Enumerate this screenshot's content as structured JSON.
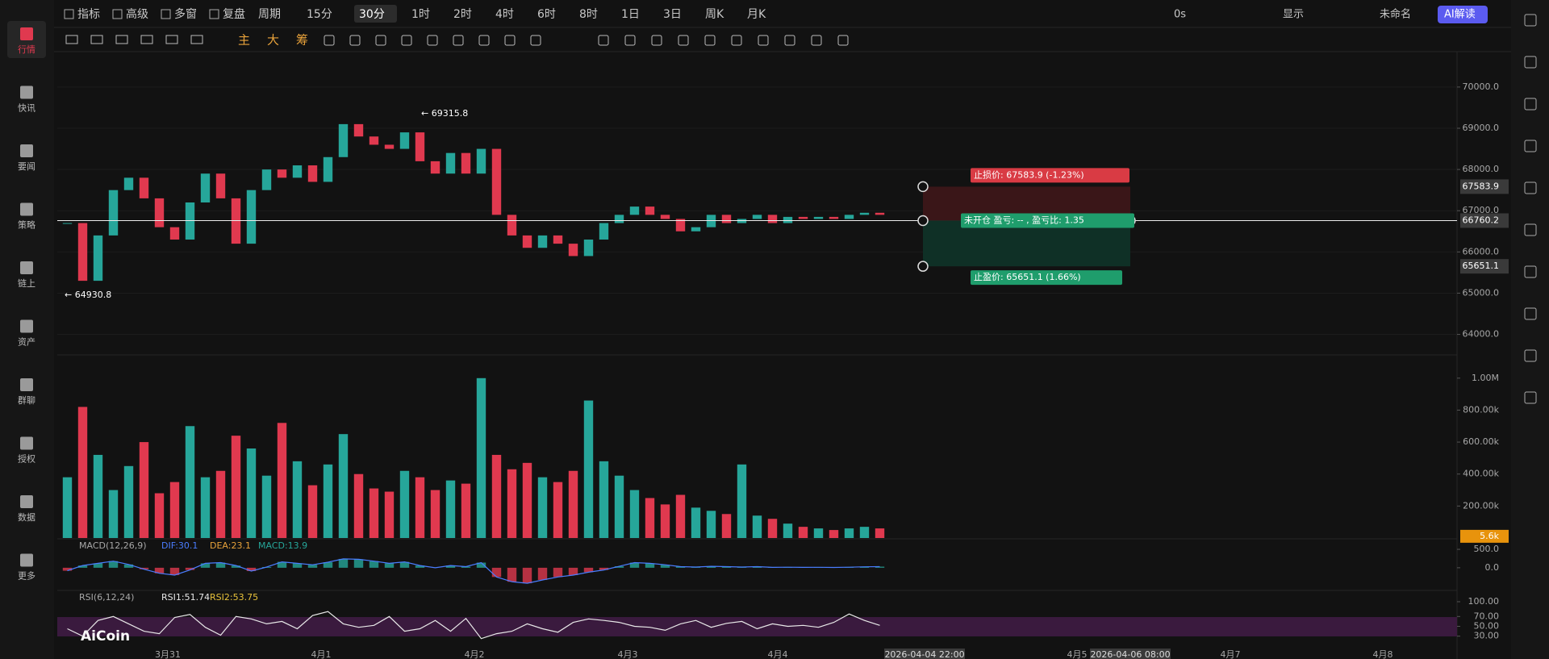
{
  "sidebar": [
    "行情",
    "快讯",
    "要闻",
    "策略",
    "链上",
    "资产",
    "群聊",
    "授权",
    "数据",
    "更多"
  ],
  "toolbar": {
    "items": [
      "指标",
      "高级",
      "多窗",
      "复盘",
      "周期",
      "15分",
      "30分",
      "1时",
      "2时",
      "4时",
      "6时",
      "8时",
      "1日",
      "3日",
      "周K",
      "月K"
    ],
    "active": "30分",
    "right": [
      "0s",
      "显示",
      "未命名",
      "AI解读"
    ]
  },
  "drawing_tools": [
    "主",
    "大",
    "筹"
  ],
  "x_labels": [
    "3月31",
    "4月1",
    "4月2",
    "4月3",
    "4月4",
    "4月5",
    "4月7",
    "4月8"
  ],
  "crosshair_labels": [
    "2026-04-04 22:00",
    "2026-04-06 08:00"
  ],
  "watermark": "AiCoin",
  "chart_data": [
    {
      "type": "candlestick",
      "ylim": [
        63600,
        70800
      ],
      "yticks": [
        {
          "value": 70000,
          "label": "70000.0"
        },
        {
          "value": 69000,
          "label": "69000.0"
        },
        {
          "value": 68000,
          "label": "68000.0"
        },
        {
          "value": 67000,
          "label": "67000.0"
        },
        {
          "value": 66000,
          "label": "66000.0"
        },
        {
          "value": 65000,
          "label": "65000.0"
        },
        {
          "value": 64000,
          "label": "64000.0"
        }
      ],
      "values": [
        66700,
        65300,
        66400,
        67500,
        67800,
        67300,
        66600,
        66300,
        67200,
        67900,
        67300,
        66200,
        67500,
        68000,
        67800,
        68100,
        67700,
        68300,
        69100,
        68800,
        68600,
        68500,
        68900,
        68200,
        67900,
        68400,
        67900,
        68500,
        66900,
        66400,
        66100,
        66400,
        66200,
        65900,
        66300,
        66700,
        66900,
        67100,
        66900,
        66800,
        66500,
        66600,
        66900,
        66700,
        66800,
        66900,
        66700,
        66850,
        66800,
        66850,
        66800,
        66900,
        66950,
        66900
      ],
      "annotations": [
        "← 69315.8",
        "← 64930.8"
      ],
      "price_labels": {
        "stop_loss": {
          "value": 67583.9,
          "label": "67583.9"
        },
        "current": {
          "value": 66760.2,
          "label": "66760.2"
        },
        "take_profit": {
          "value": 65651.1,
          "label": "65651.1"
        }
      },
      "order_texts": {
        "stop_loss": "止损价: 67583.9 (-1.23%)",
        "status": "未开仓  盈亏: -- , 盈亏比: 1.35",
        "take_profit": "止盈价: 65651.1 (1.66%)"
      },
      "colors": {
        "up": "#26a69a",
        "down": "#e0394f"
      }
    },
    {
      "type": "bar",
      "ylim": [
        0,
        1110000
      ],
      "yticks": [
        {
          "value": 1000000,
          "label": "1.00M"
        },
        {
          "value": 800000,
          "label": "800.00k"
        },
        {
          "value": 600000,
          "label": "600.00k"
        },
        {
          "value": 400000,
          "label": "400.00k"
        },
        {
          "value": 200000,
          "label": "200.00k"
        }
      ],
      "values": [
        380000,
        820000,
        520000,
        300000,
        450000,
        600000,
        280000,
        350000,
        700000,
        380000,
        420000,
        640000,
        560000,
        390000,
        720000,
        480000,
        330000,
        460000,
        650000,
        400000,
        310000,
        290000,
        420000,
        380000,
        300000,
        360000,
        340000,
        1000000,
        520000,
        430000,
        470000,
        380000,
        350000,
        420000,
        860000,
        480000,
        390000,
        300000,
        250000,
        210000,
        270000,
        190000,
        170000,
        150000,
        460000,
        140000,
        120000,
        90000,
        70000,
        60000,
        50000,
        60000,
        70000,
        60000
      ],
      "current": {
        "value": 5600,
        "label": "5.6k"
      }
    },
    {
      "type": "line",
      "title": "MACD(12,26,9)",
      "texts": [
        "DIF:30.1",
        "DEA:23.1",
        "MACD:13.9"
      ],
      "ylim": [
        -550,
        720
      ],
      "yticks": [
        {
          "value": 500,
          "label": "500.0"
        },
        {
          "value": 0,
          "label": "0.0"
        }
      ],
      "values": [
        -80,
        60,
        120,
        180,
        90,
        -40,
        -150,
        -200,
        -60,
        120,
        140,
        60,
        -90,
        20,
        160,
        120,
        80,
        150,
        240,
        230,
        180,
        120,
        160,
        60,
        0,
        60,
        30,
        140,
        -250,
        -380,
        -420,
        -330,
        -250,
        -200,
        -120,
        -60,
        40,
        140,
        120,
        80,
        30,
        20,
        40,
        30,
        20,
        30,
        10,
        15,
        10,
        12,
        8,
        15,
        25,
        30
      ],
      "color": "#4a7dff"
    },
    {
      "type": "line",
      "title": "RSI(6,12,24)",
      "texts": [
        "RSI1:51.74",
        "RSI2:53.75"
      ],
      "ylim": [
        18,
        118
      ],
      "yticks": [
        {
          "value": 100,
          "label": "100.00"
        },
        {
          "value": 70,
          "label": "70.00"
        },
        {
          "value": 50,
          "label": "50.00"
        },
        {
          "value": 30,
          "label": "30.00"
        }
      ],
      "values": [
        45,
        30,
        62,
        70,
        55,
        40,
        35,
        68,
        74,
        48,
        32,
        70,
        65,
        55,
        60,
        45,
        72,
        80,
        55,
        48,
        52,
        70,
        40,
        45,
        62,
        40,
        66,
        25,
        35,
        40,
        55,
        45,
        38,
        58,
        65,
        62,
        58,
        50,
        48,
        42,
        55,
        62,
        48,
        56,
        60,
        45,
        55,
        50,
        52,
        48,
        58,
        75,
        62,
        52
      ],
      "color": "#e8e8e8"
    }
  ]
}
